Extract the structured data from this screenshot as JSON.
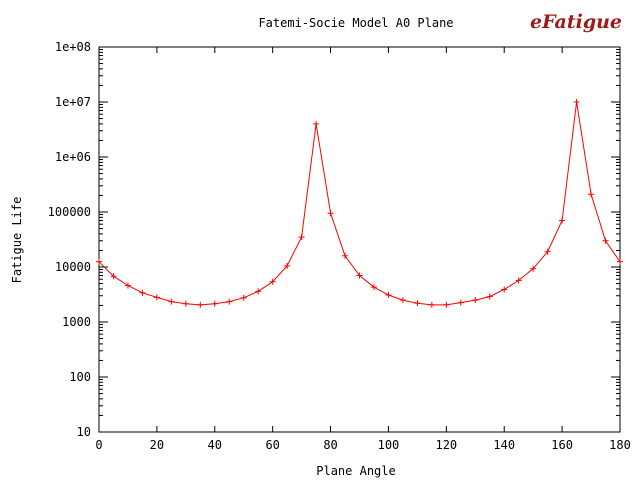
{
  "logo_text": "eFatigue",
  "chart_data": {
    "type": "line",
    "title": "Fatemi-Socie Model A0 Plane",
    "xlabel": "Plane Angle",
    "ylabel": "Fatigue Life",
    "xlim": [
      0,
      180
    ],
    "ylim": [
      10,
      100000000
    ],
    "y_scale": "log",
    "grid": false,
    "x_ticks": [
      0,
      20,
      40,
      60,
      80,
      100,
      120,
      140,
      160,
      180
    ],
    "x_tick_labels": [
      "0",
      "20",
      "40",
      "60",
      "80",
      "100",
      "120",
      "140",
      "160",
      "180"
    ],
    "y_ticks": [
      10,
      100,
      1000,
      10000,
      100000,
      1000000,
      10000000,
      100000000
    ],
    "y_tick_labels": [
      "10",
      "100",
      "1000",
      "10000",
      "100000",
      "1e+06",
      "1e+07",
      "1e+08"
    ],
    "series": [
      {
        "name": "",
        "color": "#ff0000",
        "marker": "plus",
        "x": [
          0,
          5,
          10,
          15,
          20,
          25,
          30,
          35,
          40,
          45,
          50,
          55,
          60,
          65,
          70,
          75,
          80,
          85,
          90,
          95,
          100,
          105,
          110,
          115,
          120,
          125,
          130,
          135,
          140,
          145,
          150,
          155,
          160,
          165,
          170,
          175,
          180
        ],
        "y": [
          12500,
          6800,
          4600,
          3400,
          2800,
          2350,
          2150,
          2050,
          2150,
          2350,
          2750,
          3600,
          5400,
          10500,
          35000,
          4000000,
          95000,
          16000,
          7000,
          4300,
          3100,
          2500,
          2200,
          2050,
          2050,
          2250,
          2500,
          2900,
          3900,
          5700,
          9300,
          19000,
          70000,
          10000000,
          210000,
          30000,
          12500
        ]
      }
    ]
  }
}
